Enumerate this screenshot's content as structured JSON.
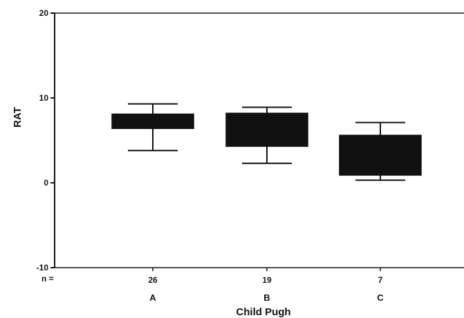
{
  "chart_data": {
    "type": "box",
    "title": "",
    "xlabel": "Child Pugh",
    "ylabel": "RAT",
    "ylim": [
      -10,
      20
    ],
    "yticks": [
      -10,
      0,
      10,
      20
    ],
    "n_prefix": "n =",
    "grid": false,
    "categories": [
      "A",
      "B",
      "C"
    ],
    "n": [
      "26",
      "19",
      "7"
    ],
    "boxes": [
      {
        "category": "A",
        "whisker_low": 3.8,
        "q1": 6.4,
        "q3": 8.1,
        "whisker_high": 9.3
      },
      {
        "category": "B",
        "whisker_low": 2.3,
        "q1": 4.3,
        "q3": 8.2,
        "whisker_high": 8.9
      },
      {
        "category": "C",
        "whisker_low": 0.3,
        "q1": 0.9,
        "q3": 5.6,
        "whisker_high": 7.1
      }
    ],
    "colors": {
      "box_fill": "#111111",
      "axis": "#111111",
      "background": "#ffffff"
    }
  }
}
